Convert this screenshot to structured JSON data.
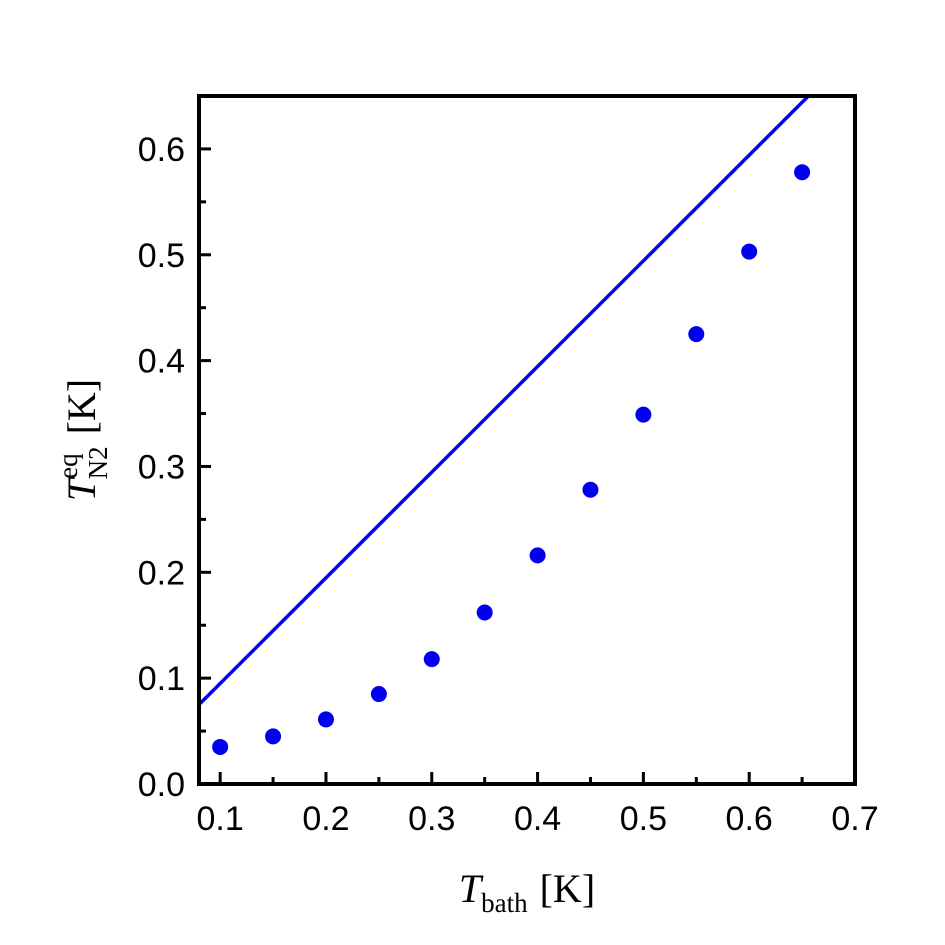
{
  "chart_data": {
    "type": "scatter",
    "xlabel": {
      "main": "T",
      "subscript": "bath",
      "unit": "[K]"
    },
    "ylabel": {
      "main": "T",
      "superscript": "eq",
      "subscript": "N2",
      "unit": "[K]"
    },
    "xlim": [
      0.08,
      0.7
    ],
    "ylim": [
      0.0,
      0.65
    ],
    "x_ticks": [
      0.1,
      0.2,
      0.3,
      0.4,
      0.5,
      0.6,
      0.7
    ],
    "x_tick_labels": [
      "0.1",
      "0.2",
      "0.3",
      "0.4",
      "0.5",
      "0.6",
      "0.7"
    ],
    "y_ticks": [
      0.0,
      0.1,
      0.2,
      0.3,
      0.4,
      0.5,
      0.6
    ],
    "y_tick_labels": [
      "0.0",
      "0.1",
      "0.2",
      "0.3",
      "0.4",
      "0.5",
      "0.6"
    ],
    "series": [
      {
        "kind": "points",
        "x": [
          0.1,
          0.15,
          0.2,
          0.25,
          0.3,
          0.35,
          0.4,
          0.45,
          0.5,
          0.55,
          0.6,
          0.65
        ],
        "y": [
          0.035,
          0.045,
          0.061,
          0.085,
          0.118,
          0.162,
          0.216,
          0.278,
          0.349,
          0.425,
          0.503,
          0.578
        ]
      },
      {
        "kind": "line",
        "x": [
          0.08,
          0.656
        ],
        "y": [
          0.075,
          0.65
        ]
      }
    ],
    "colors": {
      "series": "#0000ee",
      "frame": "#000000"
    },
    "grid": false
  }
}
